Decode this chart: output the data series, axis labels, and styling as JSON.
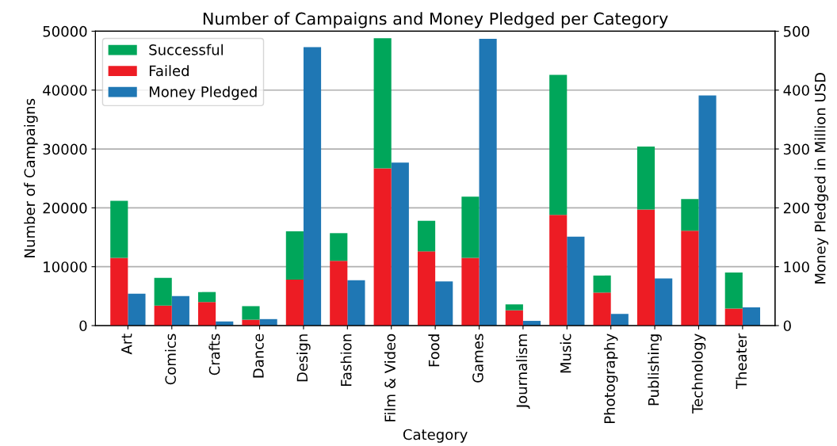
{
  "chart_data": {
    "type": "bar",
    "title": "Number of Campaigns and Money Pledged per Category",
    "xlabel": "Category",
    "ylabel": "Number of Campaigns",
    "y2label": "Money Pledged in Million USD",
    "categories": [
      "Art",
      "Comics",
      "Crafts",
      "Dance",
      "Design",
      "Fashion",
      "Film & Video",
      "Food",
      "Games",
      "Journalism",
      "Music",
      "Photography",
      "Publishing",
      "Technology",
      "Theater"
    ],
    "stacked": true,
    "series": [
      {
        "name": "Failed",
        "color": "#ed1c24",
        "values": [
          11500,
          3400,
          4000,
          1000,
          7800,
          11000,
          26700,
          12600,
          11500,
          2600,
          18800,
          5600,
          19700,
          16100,
          2900
        ]
      },
      {
        "name": "Successful",
        "color": "#00a65a",
        "values": [
          9700,
          4700,
          1700,
          2300,
          8200,
          4700,
          22100,
          5200,
          10400,
          1000,
          23800,
          2900,
          10700,
          5400,
          6100
        ]
      },
      {
        "name": "Money Pledged",
        "color": "#1f77b4",
        "axis": "y2",
        "values": [
          54,
          50,
          7,
          11,
          473,
          77,
          277,
          75,
          487,
          8,
          151,
          20,
          80,
          391,
          31
        ]
      }
    ],
    "ylim": [
      0,
      50000
    ],
    "yticks": [
      0,
      10000,
      20000,
      30000,
      40000,
      50000
    ],
    "y2lim": [
      0,
      500
    ],
    "y2ticks": [
      0,
      100,
      200,
      300,
      400,
      500
    ],
    "grid": "y",
    "legend": "top left"
  }
}
